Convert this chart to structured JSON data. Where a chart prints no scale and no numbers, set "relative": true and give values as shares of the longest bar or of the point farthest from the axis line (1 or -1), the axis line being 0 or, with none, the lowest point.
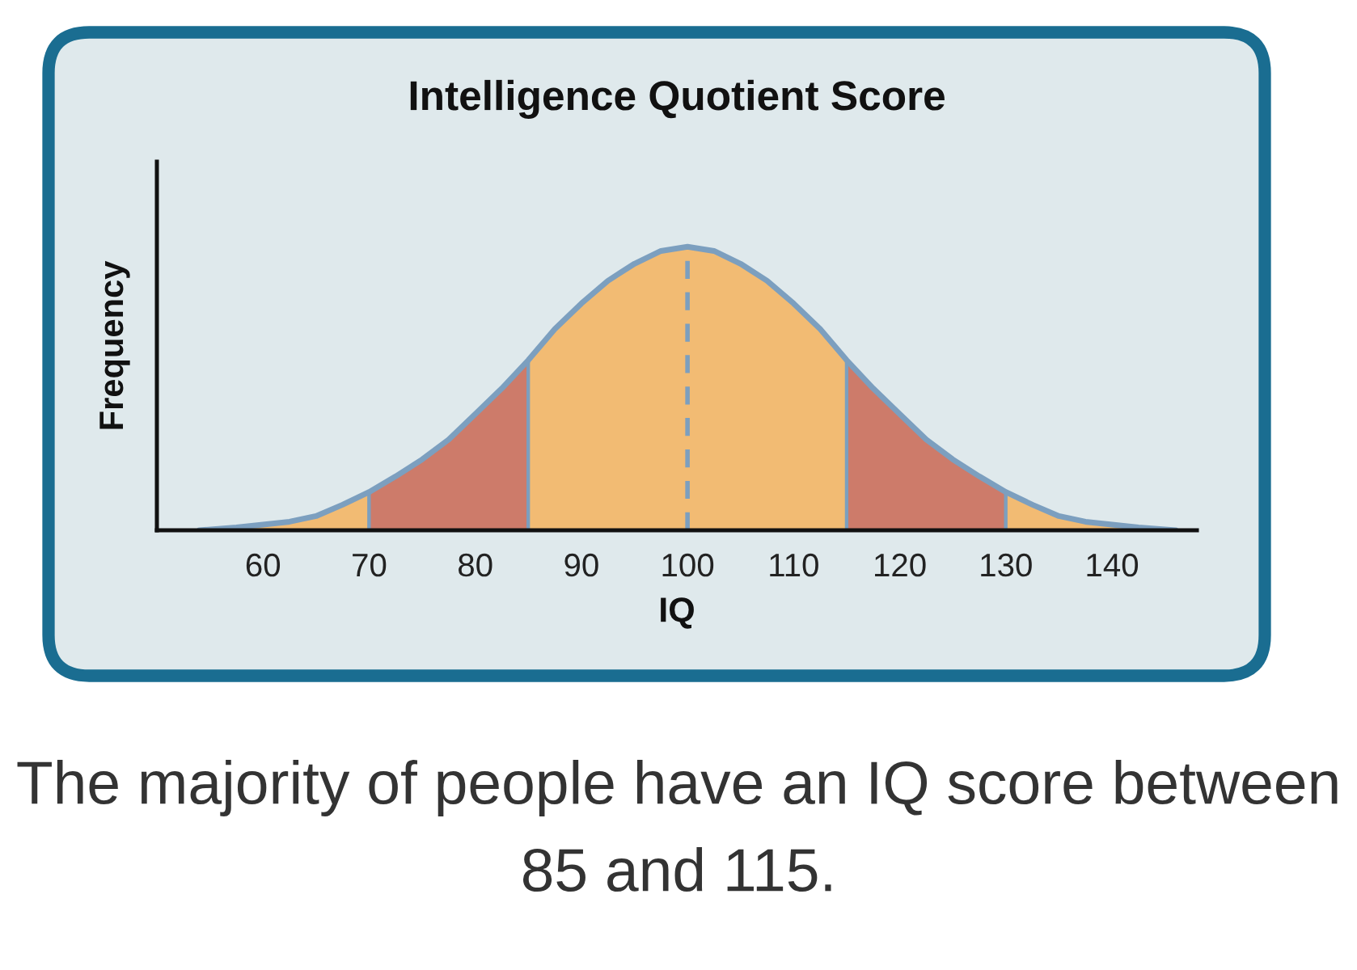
{
  "chart_data": {
    "type": "area",
    "title": "Intelligence Quotient Score",
    "xlabel": "IQ",
    "ylabel": "Frequency",
    "relative": true,
    "xlim": [
      50,
      148
    ],
    "xticks": [
      60,
      70,
      80,
      90,
      100,
      110,
      120,
      130,
      140
    ],
    "series": [
      {
        "color": "#f2bb73",
        "x": [
          54,
          57.5,
          60,
          62.5,
          65,
          67.5,
          70
        ],
        "values": [
          0,
          0.01,
          0.02,
          0.03,
          0.05,
          0.09,
          0.135
        ]
      },
      {
        "color": "#cd7b6a",
        "x": [
          70,
          72.5,
          75,
          77.5,
          80,
          82.5,
          85
        ],
        "values": [
          0.135,
          0.19,
          0.25,
          0.32,
          0.41,
          0.5,
          0.6
        ]
      },
      {
        "color": "#f2bb73",
        "x": [
          85,
          87.5,
          90,
          92.5,
          95,
          97.5,
          100,
          102.5,
          105,
          107.5,
          110,
          112.5,
          115
        ],
        "values": [
          0.6,
          0.71,
          0.8,
          0.88,
          0.94,
          0.985,
          1,
          0.985,
          0.94,
          0.88,
          0.8,
          0.71,
          0.6
        ]
      },
      {
        "color": "#cd7b6a",
        "x": [
          115,
          117.5,
          120,
          122.5,
          125,
          127.5,
          130
        ],
        "values": [
          0.6,
          0.5,
          0.41,
          0.32,
          0.25,
          0.19,
          0.135
        ]
      },
      {
        "color": "#f2bb73",
        "x": [
          130,
          132.5,
          135,
          137.5,
          140,
          142.5,
          146
        ],
        "values": [
          0.135,
          0.09,
          0.05,
          0.03,
          0.02,
          0.01,
          0
        ]
      },
      {
        "type": "line",
        "color": "#7c9fbf",
        "x": [
          54,
          57.5,
          60,
          62.5,
          65,
          67.5,
          70,
          72.5,
          75,
          77.5,
          80,
          82.5,
          85,
          87.5,
          90,
          92.5,
          95,
          97.5,
          100,
          102.5,
          105,
          107.5,
          110,
          112.5,
          115,
          117.5,
          120,
          122.5,
          125,
          127.5,
          130,
          132.5,
          135,
          137.5,
          140,
          142.5,
          146
        ],
        "values": [
          0,
          0.01,
          0.02,
          0.03,
          0.05,
          0.09,
          0.135,
          0.19,
          0.25,
          0.32,
          0.41,
          0.5,
          0.6,
          0.71,
          0.8,
          0.88,
          0.94,
          0.985,
          1,
          0.985,
          0.94,
          0.88,
          0.8,
          0.71,
          0.6,
          0.5,
          0.41,
          0.32,
          0.25,
          0.19,
          0.135,
          0.09,
          0.05,
          0.03,
          0.02,
          0.01,
          0
        ]
      }
    ],
    "ref_lines": [
      {
        "axis": "x",
        "value": 100,
        "color": "#7c9fbf",
        "line_style": "dashed"
      }
    ],
    "annotations": [
      "The majority of people have an IQ score between 85 and 115."
    ]
  }
}
